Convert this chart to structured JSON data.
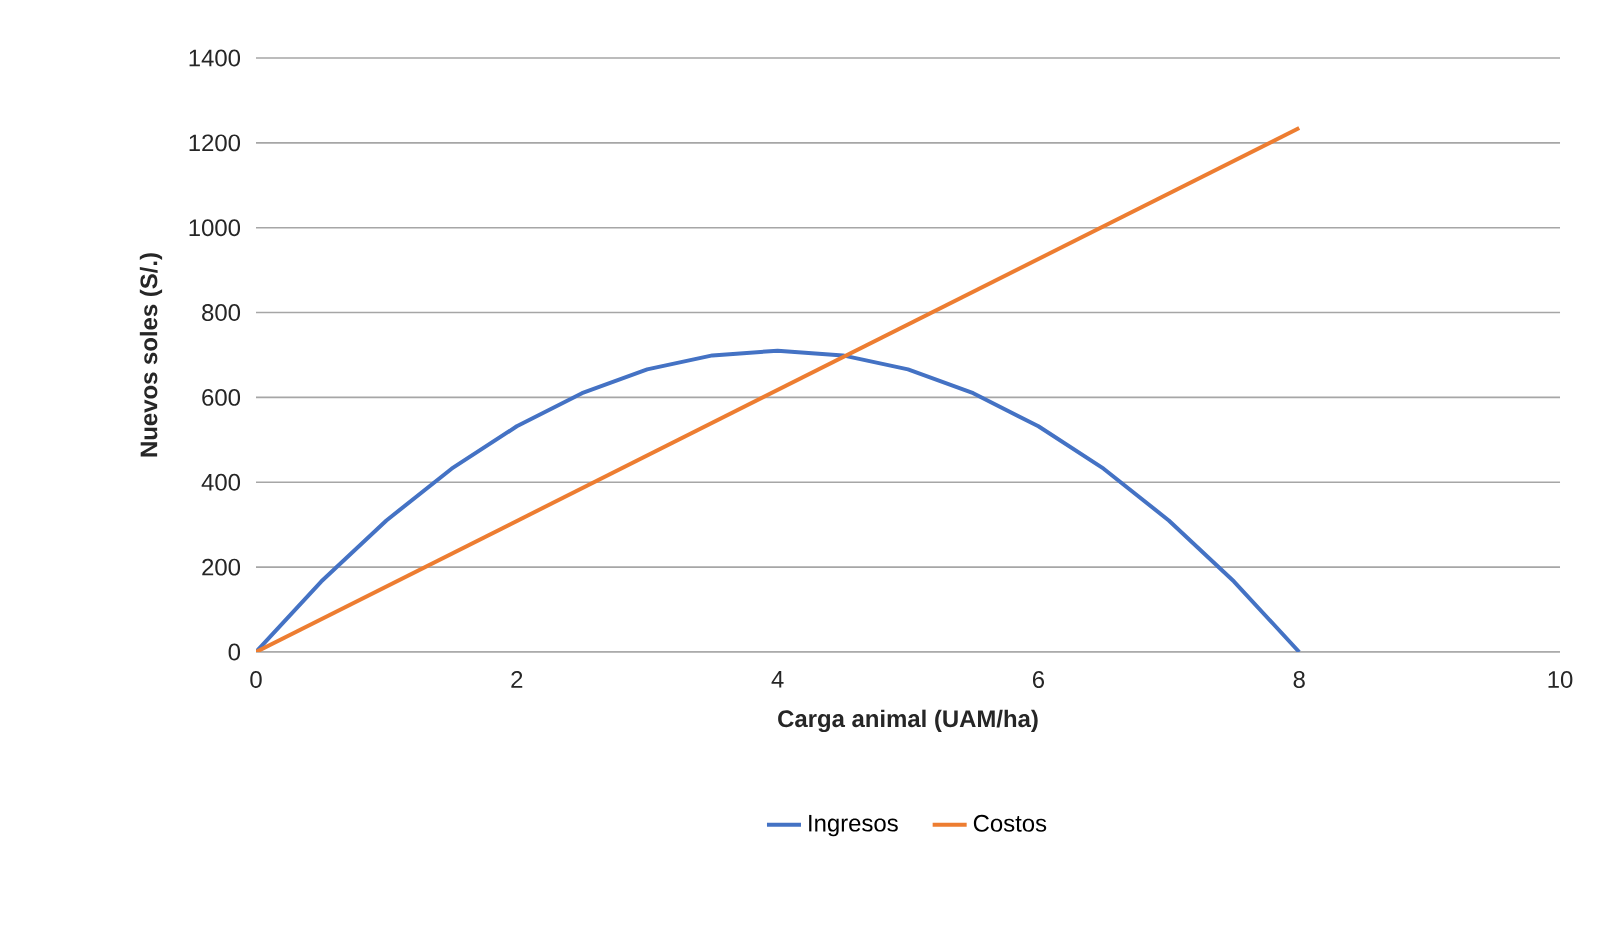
{
  "chart_data": {
    "type": "line",
    "xlabel": "Carga animal (UAM/ha)",
    "ylabel": "Nuevos soles (S/.)",
    "xlim": [
      0,
      10
    ],
    "xticks": [
      0,
      2,
      4,
      6,
      8,
      10
    ],
    "ylim": [
      0,
      1400
    ],
    "yticks": [
      0,
      200,
      400,
      600,
      800,
      1000,
      1200,
      1400
    ],
    "grid": "y",
    "legend": "bottom",
    "marker": "none",
    "line_style": "solid",
    "series": [
      {
        "name": "Ingresos",
        "color": "#4472c4",
        "x": [
          0,
          0.5,
          1,
          1.5,
          2,
          2.5,
          3,
          3.5,
          4,
          4.5,
          5,
          5.5,
          6,
          6.5,
          7,
          7.5,
          8
        ],
        "values": [
          0,
          166,
          310,
          432,
          532,
          610,
          666,
          699,
          710,
          699,
          666,
          610,
          532,
          432,
          310,
          166,
          0
        ]
      },
      {
        "name": "Costos",
        "color": "#ed7d31",
        "x": [
          0,
          8
        ],
        "values": [
          0,
          1235
        ]
      }
    ]
  }
}
